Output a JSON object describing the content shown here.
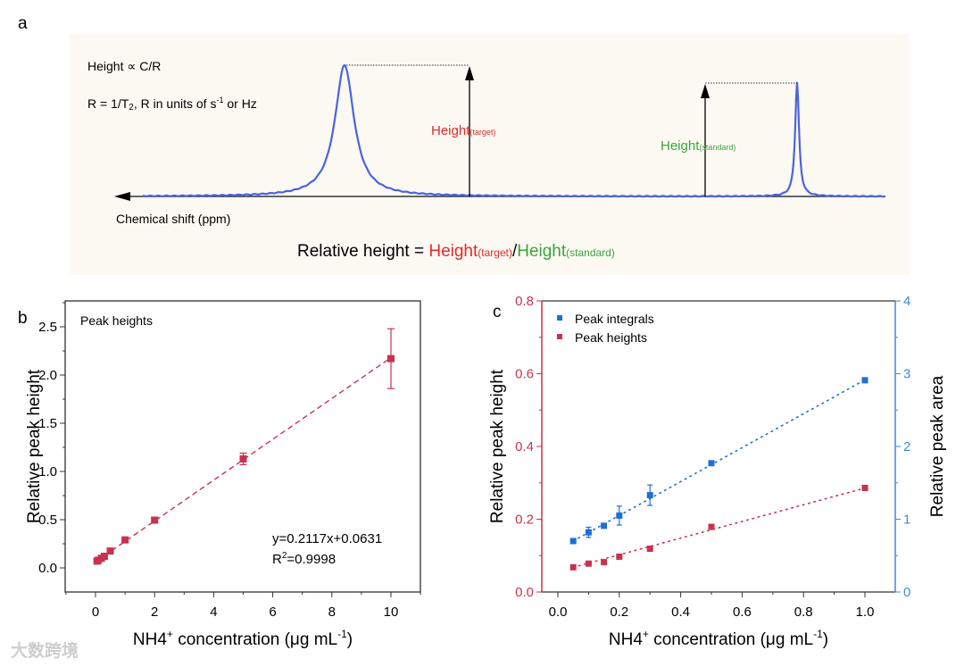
{
  "panel_a": {
    "letter": "a",
    "formula1": "Height ∝ C/R",
    "formula2_main": "R = 1/T",
    "formula2_sub": "2",
    "formula2_rest": ", R in units of s",
    "formula2_sup": "-1",
    "formula2_end": " or Hz",
    "xaxis_label": "Chemical shift (ppm)",
    "target_label": "Height",
    "target_sub": "(target)",
    "standard_label": "Height",
    "standard_sub": "(standard)",
    "equation_prefix": "Relative height = ",
    "equation_target": "Height",
    "equation_target_sub": "(target)",
    "equation_slash": "/",
    "equation_standard": "Height",
    "equation_standard_sub": "(standard)",
    "colors": {
      "background": "#fcf9f3",
      "peak": "#4a63e0",
      "target": "#e02a2a",
      "standard": "#3aa53a"
    }
  },
  "chart_data": [
    {
      "panel": "b",
      "type": "scatter",
      "title": "",
      "legend_text": "Peak heights",
      "xlabel": "NH4",
      "xlabel_sup": "+",
      "xlabel_rest": " concentration (μg mL",
      "xlabel_unit_sup": "-1",
      "xlabel_end": ")",
      "ylabel": "Relative peak height",
      "xlim": [
        -1,
        11
      ],
      "ylim": [
        -0.25,
        2.75
      ],
      "xticks": [
        0,
        2,
        4,
        6,
        8,
        10
      ],
      "xtick_labels": [
        "0",
        "2",
        "4",
        "6",
        "8",
        "10"
      ],
      "yticks": [
        0,
        0.5,
        1,
        1.5,
        2,
        2.5
      ],
      "ytick_labels": [
        "0.0",
        "0.5",
        "1.0",
        "1.5",
        "2.0",
        "2.5"
      ],
      "series": [
        {
          "name": "Peak heights",
          "color": "#c8324f",
          "x": [
            0.05,
            0.1,
            0.2,
            0.3,
            0.5,
            1,
            2,
            5,
            10
          ],
          "y": [
            0.07,
            0.08,
            0.1,
            0.12,
            0.175,
            0.29,
            0.495,
            1.13,
            2.17
          ],
          "err": [
            0.005,
            0.005,
            0.008,
            0.008,
            0.01,
            0.01,
            0.03,
            0.06,
            0.31
          ]
        }
      ],
      "fit": {
        "slope": 0.2117,
        "intercept": 0.0631,
        "equation": "y=0.2117x+0.0631",
        "r2_prefix": "R",
        "r2_sup": "2",
        "r2_value": "=0.9998"
      }
    },
    {
      "panel": "c",
      "type": "scatter",
      "xlabel": "NH4",
      "xlabel_sup": "+",
      "xlabel_rest": " concentration (μg mL",
      "xlabel_unit_sup": "-1",
      "xlabel_end": ")",
      "ylabel": "Relative peak height",
      "y2label": "Relative peak area",
      "xlim": [
        -0.05,
        1.1
      ],
      "ylim": [
        0,
        0.8
      ],
      "y2lim": [
        0,
        4
      ],
      "xticks": [
        0,
        0.2,
        0.4,
        0.6,
        0.8,
        1.0
      ],
      "xtick_labels": [
        "0.0",
        "0.2",
        "0.4",
        "0.6",
        "0.8",
        "1.0"
      ],
      "yticks": [
        0,
        0.2,
        0.4,
        0.6,
        0.8
      ],
      "ytick_labels": [
        "0.0",
        "0.2",
        "0.4",
        "0.6",
        "0.8"
      ],
      "y2ticks": [
        0,
        1,
        2,
        3,
        4
      ],
      "y2tick_labels": [
        "0",
        "1",
        "2",
        "3",
        "4"
      ],
      "legend_position": "top-left",
      "series": [
        {
          "name": "Peak integrals",
          "axis": "right",
          "color": "#1f6fd6",
          "x": [
            0.05,
            0.1,
            0.15,
            0.2,
            0.3,
            0.5,
            1.0
          ],
          "y": [
            0.7,
            0.82,
            0.91,
            1.05,
            1.33,
            1.77,
            2.91
          ],
          "err": [
            0.02,
            0.07,
            0.02,
            0.13,
            0.14,
            0.02,
            0.02
          ],
          "fit": {
            "slope": 2.33,
            "intercept": 0.585
          }
        },
        {
          "name": "Peak heights",
          "axis": "left",
          "color": "#c8324f",
          "x": [
            0.05,
            0.1,
            0.15,
            0.2,
            0.3,
            0.5,
            1.0
          ],
          "y": [
            0.068,
            0.078,
            0.082,
            0.097,
            0.119,
            0.179,
            0.286
          ],
          "err": [
            0.003,
            0.003,
            0.003,
            0.003,
            0.003,
            0.003,
            0.003
          ],
          "fit": {
            "slope": 0.229,
            "intercept": 0.0565
          }
        }
      ],
      "colors": {
        "left_axis": "#c8324f",
        "right_axis": "#3d8ae0"
      }
    }
  ],
  "watermark": "大数跨境"
}
